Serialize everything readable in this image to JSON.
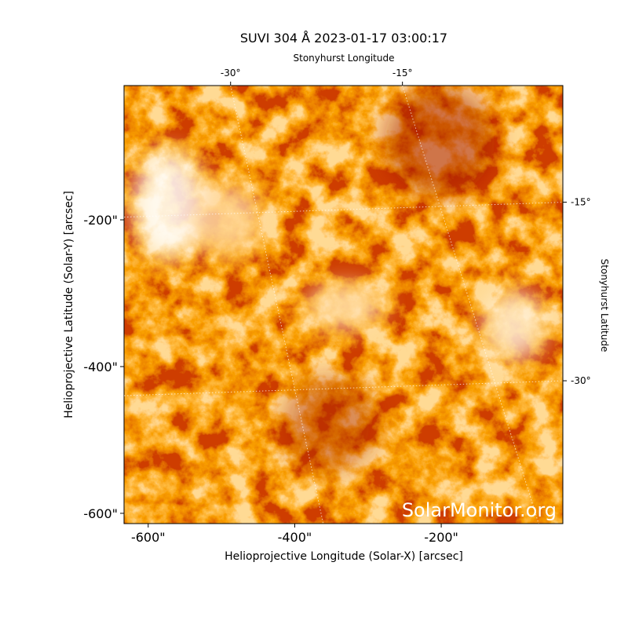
{
  "chart_data": {
    "type": "image",
    "title": "SUVI 304 Å 2023-01-17 03:00:17",
    "x_label": "Helioprojective Longitude (Solar-X) [arcsec]",
    "y_label": "Helioprojective Latitude (Solar-Y) [arcsec]",
    "x2_label": "Stonyhurst Longitude",
    "y2_label": "Stonyhurst Latitude",
    "watermark": "SolarMonitor.org",
    "xlim": [
      -633,
      -34
    ],
    "ylim": [
      -614,
      -17
    ],
    "xticks": [
      {
        "value": -600,
        "label": "-600\""
      },
      {
        "value": -400,
        "label": "-400\""
      },
      {
        "value": -200,
        "label": "-200\""
      }
    ],
    "yticks": [
      {
        "value": -200,
        "label": "-200\""
      },
      {
        "value": -400,
        "label": "-400\""
      },
      {
        "value": -600,
        "label": "-600\""
      }
    ],
    "x2lim": [
      -39.3,
      -1.0
    ],
    "x2ticks": [
      {
        "value": -30,
        "label": "-30°"
      },
      {
        "value": -15,
        "label": "-15°"
      }
    ],
    "y2lim": [
      -42.0,
      -5.2
    ],
    "y2ticks": [
      {
        "value": -15,
        "label": "-15°"
      },
      {
        "value": -30,
        "label": "-30°"
      }
    ],
    "grid": true
  }
}
